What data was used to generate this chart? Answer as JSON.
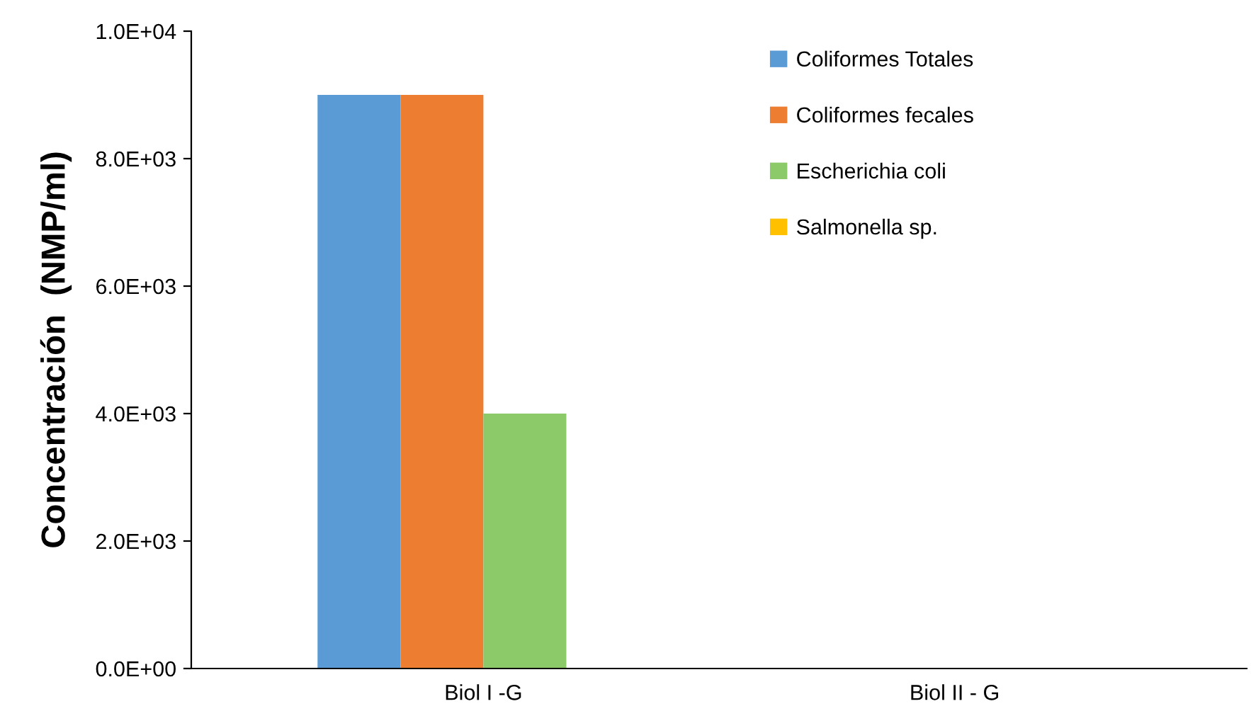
{
  "chart_data": {
    "type": "bar",
    "ylabel": "Concentración  (NMP/ml)",
    "categories": [
      "Biol I -G",
      "Biol II - G"
    ],
    "series": [
      {
        "name": "Coliformes Totales",
        "color": "#5b9bd5",
        "values": [
          9000,
          0
        ]
      },
      {
        "name": "Coliformes fecales",
        "color": "#ed7d31",
        "values": [
          9000,
          0
        ]
      },
      {
        "name": "Escherichia coli",
        "color": "#8cc968",
        "values": [
          4000,
          0
        ]
      },
      {
        "name": "Salmonella sp.",
        "color": "#ffc000",
        "values": [
          0,
          0
        ]
      }
    ],
    "ylim": [
      0,
      10000
    ],
    "yticks": [
      {
        "value": 0,
        "label": "0.0E+00"
      },
      {
        "value": 2000,
        "label": "2.0E+03"
      },
      {
        "value": 4000,
        "label": "4.0E+03"
      },
      {
        "value": 6000,
        "label": "6.0E+03"
      },
      {
        "value": 8000,
        "label": "8.0E+03"
      },
      {
        "value": 10000,
        "label": "1.0E+04"
      }
    ],
    "grid": false,
    "legend": "top right"
  }
}
